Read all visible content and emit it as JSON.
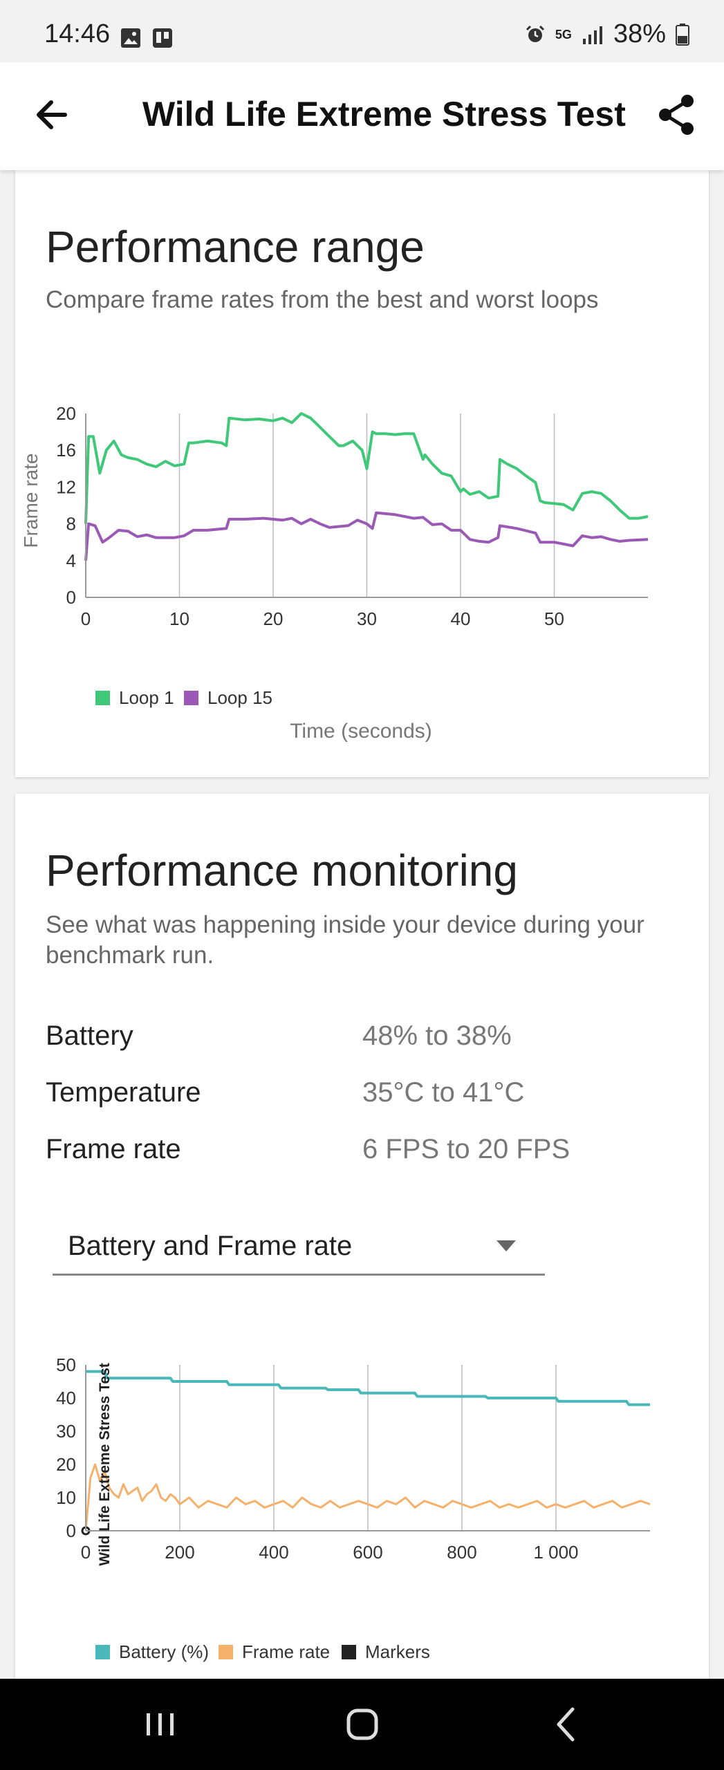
{
  "status_bar": {
    "time": "14:46",
    "network": "5G",
    "battery": "38%"
  },
  "header": {
    "title": "Wild Life Extreme Stress Test"
  },
  "performance_range": {
    "title": "Performance range",
    "subtitle": "Compare frame rates from the best and worst loops"
  },
  "performance_monitoring": {
    "title": "Performance monitoring",
    "subtitle": "See what was happening inside your device during your benchmark run.",
    "stats": [
      {
        "label": "Battery",
        "value": "48% to 38%"
      },
      {
        "label": "Temperature",
        "value": "35°C to 41°C"
      },
      {
        "label": "Frame rate",
        "value": "6 FPS to 20 FPS"
      }
    ],
    "selector": {
      "selected": "Battery and Frame rate"
    }
  },
  "colors": {
    "loop1": "#3ec878",
    "loop15": "#9b59b6",
    "battery": "#4ab8b8",
    "frame_rate": "#f5b06a",
    "markers": "#222222"
  },
  "chart_data": [
    {
      "type": "line",
      "title": "",
      "xlabel": "Time (seconds)",
      "ylabel": "Frame rate",
      "xlim": [
        0,
        60
      ],
      "ylim": [
        0,
        20
      ],
      "x_ticks": [
        "0",
        "10",
        "20",
        "30",
        "40",
        "50"
      ],
      "y_ticks": [
        "0",
        "4",
        "8",
        "12",
        "16",
        "20"
      ],
      "grid": "vertical",
      "legend": "bottom-left",
      "series": [
        {
          "name": "Loop 1",
          "x": [
            0,
            0.3,
            0.8,
            1.5,
            2.2,
            3,
            3.8,
            4.5,
            5.5,
            6.5,
            7.5,
            8.5,
            9.5,
            10.5,
            11,
            11.5,
            13,
            14.5,
            15,
            15.3,
            17,
            18.5,
            20,
            21,
            22,
            23,
            24,
            25,
            26,
            27,
            27.5,
            28.5,
            29.5,
            30,
            30.6,
            31,
            32,
            33,
            34,
            35,
            36,
            36.2,
            37,
            38,
            39,
            40,
            40.3,
            41,
            42,
            43,
            44,
            44.2,
            45,
            46,
            47,
            48,
            48.5,
            49,
            50,
            51,
            52,
            53,
            54,
            55,
            56,
            57,
            58,
            59,
            60
          ],
          "y": [
            8,
            17.5,
            17.5,
            13.5,
            16,
            17,
            15.5,
            15.2,
            15,
            14.5,
            14.2,
            14.8,
            14.3,
            14.5,
            16.8,
            16.8,
            17,
            16.8,
            16.5,
            19.5,
            19.3,
            19.4,
            19.2,
            19.5,
            19,
            20,
            19.5,
            18.5,
            17.5,
            16.5,
            16.5,
            17,
            16,
            14,
            18,
            17.8,
            17.8,
            17.7,
            17.8,
            17.8,
            15,
            15.5,
            14.5,
            13.5,
            13.2,
            11.5,
            11.8,
            11.2,
            11.5,
            10.8,
            11,
            15,
            14.5,
            14,
            13.2,
            12.5,
            10.5,
            10.3,
            10.2,
            10.1,
            9.5,
            11.3,
            11.5,
            11.3,
            10.5,
            9.5,
            8.6,
            8.6,
            8.8
          ]
        },
        {
          "name": "Loop 15",
          "x": [
            0,
            0.3,
            1,
            1.8,
            2.5,
            3.5,
            4.5,
            5.5,
            6.5,
            7.5,
            8.5,
            9.5,
            10.5,
            11.5,
            13,
            15,
            15.3,
            17,
            19,
            21,
            22,
            23,
            24,
            25,
            26,
            28,
            29,
            30,
            30.6,
            31,
            33,
            35,
            36,
            37,
            38,
            39,
            40,
            41,
            42,
            43,
            44,
            44.2,
            46,
            48,
            48.5,
            50,
            52,
            53,
            54,
            55,
            56,
            57,
            58,
            60
          ],
          "y": [
            4,
            8,
            7.8,
            6,
            6.5,
            7.3,
            7.2,
            6.6,
            6.8,
            6.5,
            6.5,
            6.5,
            6.7,
            7.3,
            7.3,
            7.5,
            8.5,
            8.5,
            8.6,
            8.4,
            8.6,
            8,
            8.5,
            8,
            7.6,
            7.8,
            8.4,
            8,
            7.5,
            9.2,
            9,
            8.6,
            8.7,
            7.9,
            8,
            7.3,
            7.3,
            6.3,
            6.1,
            6,
            6.5,
            7.8,
            7.5,
            7,
            6,
            6,
            5.6,
            6.7,
            6.5,
            6.6,
            6.3,
            6.1,
            6.2,
            6.3
          ]
        }
      ]
    },
    {
      "type": "line",
      "title": "",
      "xlabel": "",
      "ylabel": "",
      "xlim": [
        0,
        1200
      ],
      "ylim": [
        0,
        50
      ],
      "x_ticks": [
        "0",
        "200",
        "400",
        "600",
        "800",
        "1 000"
      ],
      "y_ticks": [
        "0",
        "10",
        "20",
        "30",
        "40",
        "50"
      ],
      "grid": "vertical",
      "legend": "bottom-left",
      "marker_label": "Wild Life Extreme Stress Test",
      "series": [
        {
          "name": "Battery (%)",
          "x": [
            0,
            40,
            45,
            180,
            185,
            300,
            305,
            410,
            415,
            510,
            515,
            580,
            585,
            700,
            705,
            850,
            855,
            1000,
            1005,
            1150,
            1155,
            1200
          ],
          "y": [
            48,
            48,
            46,
            46,
            45,
            45,
            44,
            44,
            43,
            43,
            42.5,
            42.5,
            41.5,
            41.5,
            40.5,
            40.5,
            40,
            40,
            39,
            39,
            38,
            38
          ]
        },
        {
          "name": "Frame rate",
          "x": [
            0,
            10,
            20,
            30,
            40,
            50,
            60,
            70,
            80,
            90,
            100,
            110,
            120,
            130,
            140,
            150,
            160,
            170,
            180,
            190,
            200,
            220,
            240,
            260,
            280,
            300,
            320,
            340,
            360,
            380,
            400,
            420,
            440,
            460,
            480,
            500,
            520,
            540,
            560,
            580,
            600,
            620,
            640,
            660,
            680,
            700,
            720,
            740,
            760,
            780,
            800,
            820,
            840,
            860,
            880,
            900,
            920,
            940,
            960,
            980,
            1000,
            1020,
            1040,
            1060,
            1080,
            1100,
            1120,
            1140,
            1160,
            1180,
            1200
          ],
          "y": [
            0,
            16,
            20,
            15,
            18,
            13,
            11,
            10,
            14,
            11,
            12,
            13,
            9,
            11,
            12,
            14,
            10,
            9,
            11,
            10,
            8,
            10,
            7,
            9,
            8,
            7,
            10,
            8,
            9,
            7,
            8,
            9,
            7,
            10,
            8,
            7,
            9,
            7,
            8,
            9,
            8,
            7,
            9,
            8,
            10,
            7,
            9,
            8,
            7,
            9,
            8,
            7,
            8,
            9,
            7,
            8,
            7,
            8,
            9,
            7,
            8,
            7,
            8,
            9,
            7,
            8,
            9,
            7,
            8,
            9,
            8
          ]
        }
      ],
      "legend_entries": [
        "Battery (%)",
        "Frame rate",
        "Markers"
      ]
    }
  ]
}
